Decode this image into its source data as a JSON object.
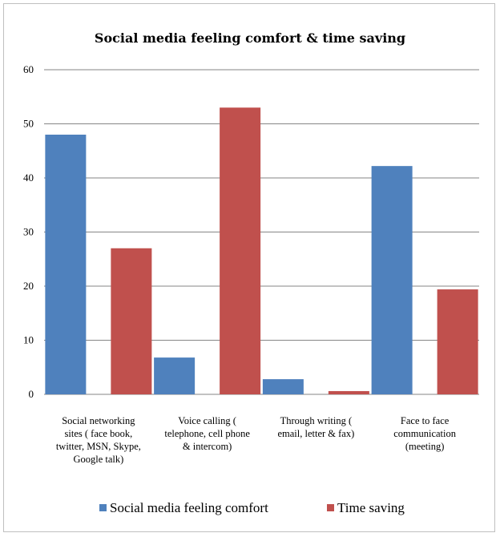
{
  "chart_data": {
    "type": "bar",
    "title": "Social media feeling comfort & time saving",
    "xlabel": "",
    "ylabel": "",
    "ylim": [
      0,
      60
    ],
    "yticks": [
      0,
      10,
      20,
      30,
      40,
      50,
      60
    ],
    "grid": true,
    "legend_position": "bottom",
    "categories": [
      [
        "Social networking",
        "sites ( face book,",
        "twitter, MSN, Skype,",
        "Google talk)"
      ],
      [
        "Voice calling (",
        "telephone, cell phone",
        "& intercom)"
      ],
      [
        "Through writing (",
        "email, letter & fax)"
      ],
      [
        "Face to face",
        "communication",
        "(meeting)"
      ]
    ],
    "series": [
      {
        "name": "Social media feeling comfort",
        "color": "#4f81bd",
        "values": [
          48,
          6.8,
          2.8,
          42.2
        ]
      },
      {
        "name": "Time saving",
        "color": "#c0504d",
        "values": [
          27,
          53,
          0.6,
          19.4
        ]
      }
    ]
  }
}
